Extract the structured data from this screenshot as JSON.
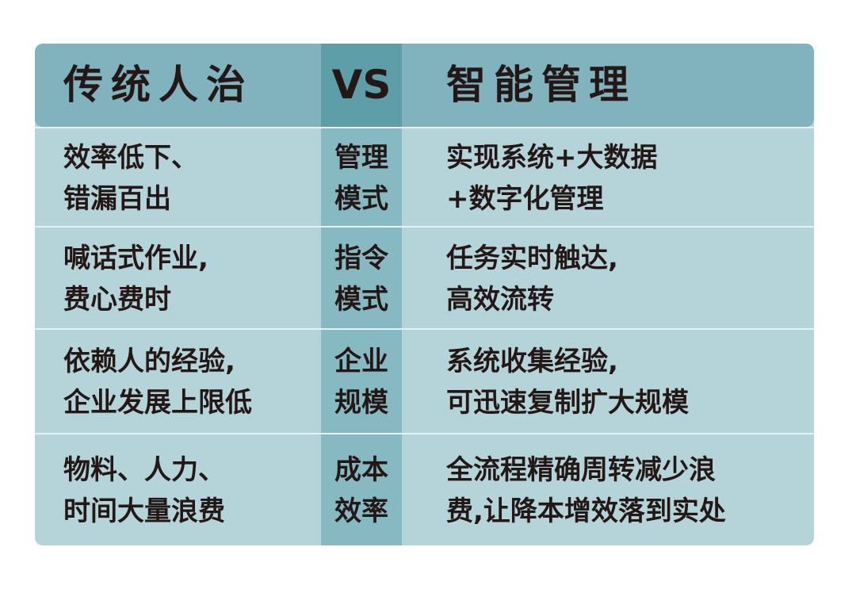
{
  "header": {
    "left": "传统人治",
    "middle": "VS",
    "right": "智能管理"
  },
  "colors": {
    "header": "#80b3be",
    "header_middle": "#5e9ea9",
    "body": "#b5d4d9",
    "body_middle": "#87b9c2",
    "text": "#231815"
  },
  "rows": [
    {
      "left": [
        "效率低下、",
        "错漏百出"
      ],
      "middle": [
        "管理",
        "模式"
      ],
      "right": [
        "实现系统+大数据",
        "+数字化管理"
      ]
    },
    {
      "left": [
        "喊话式作业,",
        "费心费时"
      ],
      "middle": [
        "指令",
        "模式"
      ],
      "right": [
        "任务实时触达,",
        "高效流转"
      ]
    },
    {
      "left": [
        "依赖人的经验,",
        "企业发展上限低"
      ],
      "middle": [
        "企业",
        "规模"
      ],
      "right": [
        "系统收集经验,",
        "可迅速复制扩大规模"
      ]
    },
    {
      "left": [
        "物料、人力、",
        "时间大量浪费"
      ],
      "middle": [
        "成本",
        "效率"
      ],
      "right": [
        "全流程精确周转减少浪",
        "费,让降本增效落到实处"
      ]
    }
  ]
}
